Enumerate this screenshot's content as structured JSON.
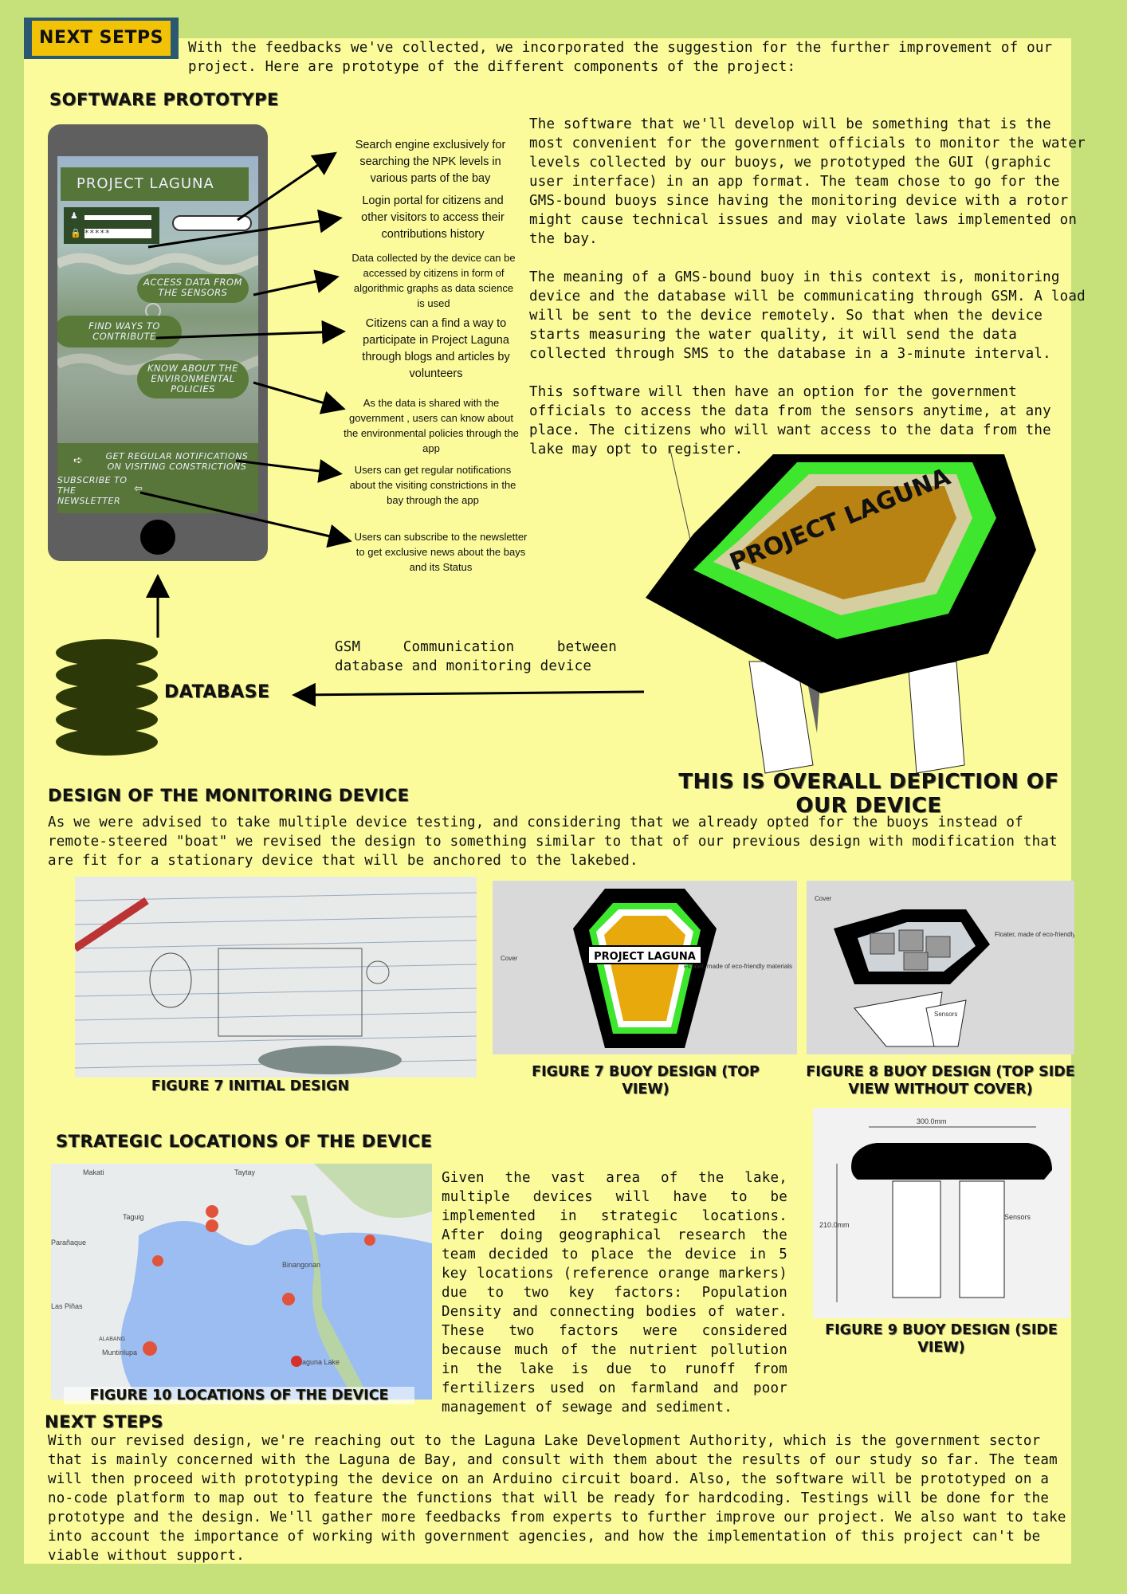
{
  "header": {
    "tag": "NEXT SETPS",
    "intro": "With the feedbacks we've collected, we incorporated the suggestion for the further improvement of our project. Here are prototype of the different components of the project:"
  },
  "software": {
    "heading": "SOFTWARE PROTOTYPE",
    "app_title": "PROJECT LAGUNA",
    "password_mask": "*****",
    "pills": {
      "access": "ACCESS DATA FROM THE SENSORS",
      "contribute": "FIND WAYS TO CONTRIBUTE",
      "policies": "KNOW ABOUT THE ENVIRONMENTAL POLICIES",
      "notifications": "GET REGULAR NOTIFICATIONS ON VISITING CONSTRICTIONS",
      "newsletter": "SUBSCRIBE TO THE NEWSLETTER"
    },
    "notes": [
      "Search engine exclusively for searching the NPK levels in various parts of the bay",
      "Login portal for citizens and other visitors to access their contributions history",
      "Data collected by the device can be accessed by citizens in form of algorithmic graphs as data science is used",
      "Citizens can a find a way to participate in Project Laguna through blogs and articles by volunteers",
      "As the data is shared with the government , users can know about the environmental policies through the app",
      "Users can get regular notifications about the visiting constrictions in the bay through the app",
      "Users can subscribe to the newsletter to get exclusive news about the bays and its Status"
    ],
    "paragraphs": [
      "The software that we'll develop will be something that is the most convenient for the government officials to monitor the water levels collected by our buoys, we prototyped the GUI (graphic user interface) in an app format. The team chose to go for the GMS-bound buoys since having the monitoring device with a rotor might cause technical issues and may violate laws implemented on the bay.",
      "The meaning of a GMS-bound buoy in this context is, monitoring device and the database will be communicating through GSM. A load will be sent to the device remotely. So that when the device starts measuring the water quality, it will send the data collected through SMS to the database in a 3-minute interval.",
      "This software will then have an option for the government officials to access the data from the sensors anytime, at any place. The citizens who will want access to the data from the lake may opt to register."
    ]
  },
  "database": {
    "label": "DATABASE",
    "gsm_text": "GSM Communication between database and monitoring device"
  },
  "device": {
    "lid_text": "PROJECT LAGUNA",
    "overall_caption": "THIS IS OVERALL DEPICTION OF OUR DEVICE",
    "heading": "DESIGN OF THE MONITORING DEVICE",
    "text": "As we were advised to take multiple device testing, and considering that we already opted for the buoys instead of remote-steered \"boat\" we revised the design to something similar to that of our previous design with modification that are fit for a stationary device that will be anchored to the lakebed."
  },
  "figures": {
    "fig7a": "FIGURE 7 INITIAL DESIGN",
    "fig7b": "FIGURE 7 BUOY DESIGN (TOP VIEW)",
    "fig8": "FIGURE 8 BUOY DESIGN (TOP SIDE VIEW WITHOUT COVER)",
    "fig9": "FIGURE 9 BUOY DESIGN (SIDE VIEW)",
    "fig10": "FIGURE 10 LOCATIONS OF THE DEVICE",
    "buoy_label": "PROJECT LAGUNA",
    "cover": "Cover",
    "floater": "Floater, made of eco-friendly materials",
    "sensors": "Sensors",
    "dim_width": "300.0mm",
    "dim_height": "210.0mm",
    "map_labels": [
      "Makati",
      "Taytay",
      "Taguig",
      "Parañaque",
      "Las Piñas",
      "Muntinlupa",
      "Binangonan",
      "Laguna Lake",
      "ALABANG"
    ]
  },
  "locations": {
    "heading": "STRATEGIC LOCATIONS OF THE DEVICE",
    "text": "Given the vast area of the lake, multiple devices will have to be implemented in strategic locations. After doing geographical research the team decided to place the device in 5 key locations (reference orange markers) due to two key factors: Population Density and connecting bodies of water. These two factors were considered because much of the nutrient pollution in the lake is due to runoff from fertilizers used on farmland and poor management of sewage and sediment."
  },
  "next_steps": {
    "heading": "NEXT STEPS",
    "text": "With our revised design, we're reaching out to the Laguna Lake Development Authority, which is the government sector that is mainly concerned with the Laguna de Bay, and consult with them about the results of our study so far. The team will then proceed with prototyping the device on an Arduino circuit board. Also, the software will be prototyped on a no-code platform to map out to feature the functions that will be ready for hardcoding. Testings will be done for the prototype and the design. We'll gather more feedbacks from experts to further improve our project. We also want to take into account the importance of working with government agencies, and how the implementation of this project can't be viable without support."
  },
  "colors": {
    "background": "#c6e07a",
    "panel": "#fbfb9c",
    "accent": "#f2c207",
    "phone_green": "#5a7a3a",
    "buoy_green": "#3ee62e",
    "buoy_brown": "#b88312"
  }
}
